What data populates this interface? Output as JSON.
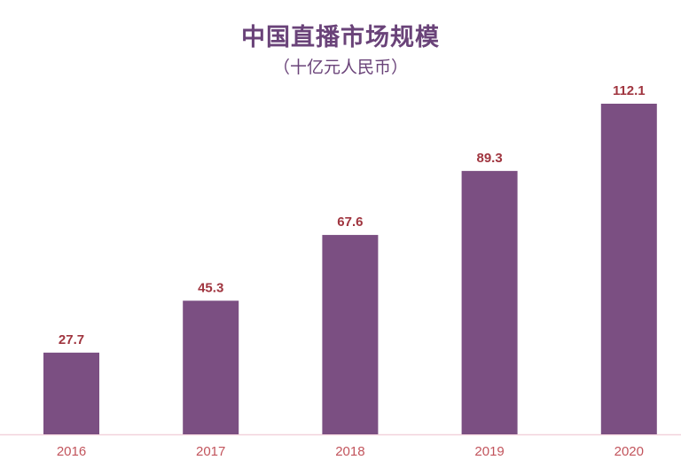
{
  "chart_data": {
    "type": "bar",
    "title": "中国直播市场规模",
    "subtitle": "（十亿元人民币）",
    "categories": [
      "2016",
      "2017",
      "2018",
      "2019",
      "2020"
    ],
    "values": [
      27.7,
      45.3,
      67.6,
      89.3,
      112.1
    ],
    "data_labels": [
      "27.7",
      "45.3",
      "67.6",
      "89.3",
      "112.1"
    ],
    "xlabel": "",
    "ylabel": "",
    "ylim": [
      0,
      112.1
    ],
    "grid": false,
    "colors": {
      "bar": "#7b4f82",
      "value_label": "#a0353f",
      "tick_label": "#c2545c",
      "axis": "#f2d3dc",
      "title": "#6a4379"
    }
  }
}
